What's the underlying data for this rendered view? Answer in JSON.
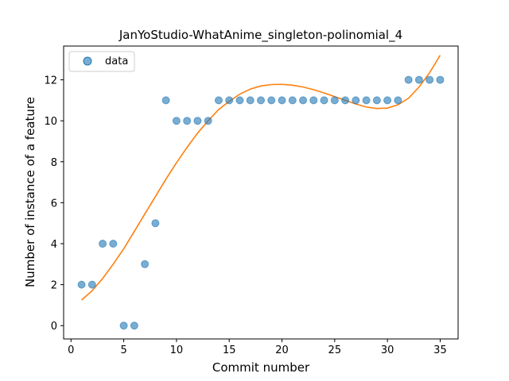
{
  "chart_data": {
    "type": "scatter",
    "title": "JanYoStudio-WhatAnime_singleton-polinomial_4",
    "xlabel": "Commit number",
    "ylabel": "Number of instance of a feature",
    "xlim": [
      -0.7,
      36.7
    ],
    "ylim": [
      -0.65,
      13.65
    ],
    "xticks": [
      0,
      5,
      10,
      15,
      20,
      25,
      30,
      35
    ],
    "yticks": [
      0,
      2,
      4,
      6,
      8,
      10,
      12
    ],
    "grid": false,
    "legend": {
      "placement": "top-left",
      "entries": [
        "data"
      ]
    },
    "colors": {
      "points": "#1f77b4",
      "fit": "#ff7f0e"
    },
    "series": [
      {
        "name": "data",
        "kind": "scatter",
        "x": [
          1,
          2,
          3,
          4,
          5,
          6,
          7,
          8,
          9,
          10,
          11,
          12,
          13,
          14,
          15,
          16,
          17,
          18,
          19,
          20,
          21,
          22,
          23,
          24,
          25,
          26,
          27,
          28,
          29,
          30,
          31,
          32,
          33,
          34,
          35
        ],
        "y": [
          2,
          2,
          4,
          4,
          0,
          0,
          3,
          5,
          11,
          10,
          10,
          10,
          10,
          11,
          11,
          11,
          11,
          11,
          11,
          11,
          11,
          11,
          11,
          11,
          11,
          11,
          11,
          11,
          11,
          11,
          11,
          12,
          12,
          12,
          12
        ]
      },
      {
        "kind": "line",
        "x": [
          1,
          2,
          3,
          4,
          5,
          6,
          7,
          8,
          9,
          10,
          11,
          12,
          13,
          14,
          15,
          16,
          17,
          18,
          19,
          20,
          21,
          22,
          23,
          24,
          25,
          26,
          27,
          28,
          29,
          30,
          31,
          32,
          33,
          34,
          35
        ],
        "y": [
          1.25,
          1.7,
          2.3,
          3.0,
          3.75,
          4.6,
          5.45,
          6.3,
          7.15,
          7.95,
          8.7,
          9.4,
          10.0,
          10.55,
          10.95,
          11.3,
          11.55,
          11.7,
          11.77,
          11.78,
          11.74,
          11.65,
          11.52,
          11.36,
          11.18,
          11.0,
          10.82,
          10.67,
          10.6,
          10.62,
          10.78,
          11.1,
          11.65,
          12.35,
          13.2
        ]
      }
    ]
  }
}
